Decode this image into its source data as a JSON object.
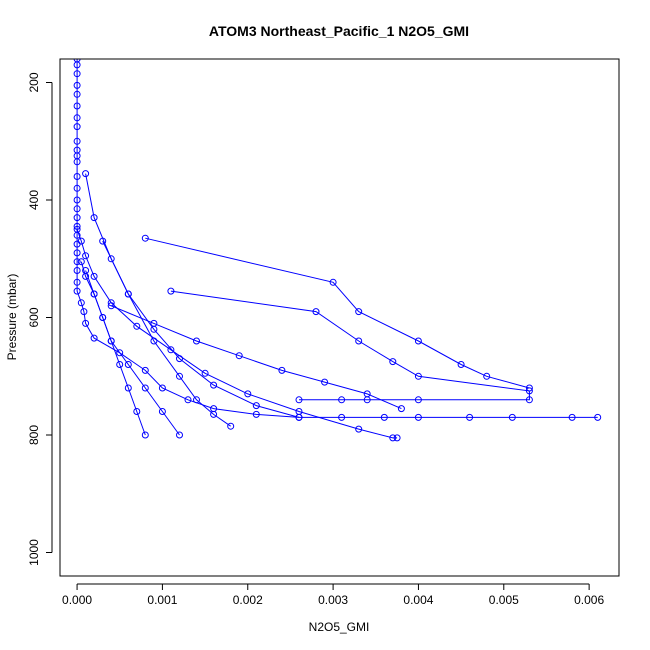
{
  "chart_data": {
    "type": "line",
    "title": "ATOM3 Northeast_Pacific_1 N2O5_GMI",
    "xlabel": "N2O5_GMI",
    "ylabel": "Pressure (mbar)",
    "xlim": [
      -0.0002,
      0.00635
    ],
    "ylim": [
      1040,
      160
    ],
    "y_reversed": true,
    "x_ticks": [
      "0.000",
      "0.001",
      "0.002",
      "0.003",
      "0.004",
      "0.005",
      "0.006"
    ],
    "y_ticks": [
      "200",
      "400",
      "600",
      "800",
      "1000"
    ],
    "grid": false,
    "series_color": "#0000ff",
    "marker": "open-circle",
    "series": [
      {
        "x": [
          0,
          0,
          0,
          0,
          0,
          0,
          0,
          0,
          0,
          0,
          0,
          0,
          0,
          0,
          0,
          0,
          0,
          0,
          0,
          0,
          0,
          0,
          0,
          0,
          0,
          5e-05,
          8e-05,
          0.0001,
          0.0002,
          0.0005,
          0.0008,
          0.001,
          0.0013,
          0.0016,
          0.0021,
          0.0026,
          0.0031,
          0.0036,
          0.004,
          0.0046,
          0.0051,
          0.0058,
          0.0061
        ],
        "y": [
          160,
          170,
          185,
          205,
          220,
          240,
          260,
          275,
          300,
          315,
          325,
          335,
          360,
          380,
          400,
          415,
          430,
          445,
          460,
          475,
          490,
          505,
          520,
          540,
          555,
          575,
          590,
          610,
          635,
          660,
          690,
          720,
          740,
          755,
          765,
          770,
          770,
          770,
          770,
          770,
          770,
          770,
          770
        ]
      },
      {
        "x": [
          0,
          5e-05,
          0.0001,
          0.0002,
          0.0004,
          0.0007,
          0.0011,
          0.0015,
          0.002,
          0.0026,
          0.0033,
          0.0037,
          0.00375
        ],
        "y": [
          450,
          470,
          495,
          530,
          575,
          615,
          655,
          695,
          730,
          760,
          790,
          805,
          805
        ]
      },
      {
        "x": [
          0.0001,
          0.0002,
          0.0004,
          0.0006,
          0.0009,
          0.0012,
          0.0016,
          0.0021,
          0.0026
        ],
        "y": [
          355,
          430,
          500,
          560,
          620,
          670,
          715,
          750,
          770
        ]
      },
      {
        "x": [
          0.0003,
          0.0006,
          0.0009,
          0.0012,
          0.0014,
          0.0016,
          0.0018
        ],
        "y": [
          470,
          560,
          640,
          700,
          740,
          765,
          785
        ]
      },
      {
        "x": [
          5e-05,
          0.0001,
          0.0002,
          0.0003,
          0.0004,
          0.0006,
          0.0008,
          0.001,
          0.0012
        ],
        "y": [
          505,
          530,
          560,
          600,
          640,
          680,
          720,
          760,
          800
        ]
      },
      {
        "x": [
          0.0001,
          0.0002,
          0.0003,
          0.0004,
          0.0005,
          0.0006,
          0.0007,
          0.0008
        ],
        "y": [
          520,
          560,
          600,
          640,
          680,
          720,
          760,
          800
        ]
      },
      {
        "x": [
          0.0008,
          0.003,
          0.0033,
          0.004,
          0.0045,
          0.0048,
          0.0053
        ],
        "y": [
          465,
          540,
          590,
          640,
          680,
          700,
          720
        ]
      },
      {
        "x": [
          0.0011,
          0.0028,
          0.0033,
          0.0037,
          0.004,
          0.0053,
          0.0053,
          0.004,
          0.0034,
          0.0031,
          0.0026
        ],
        "y": [
          555,
          590,
          640,
          675,
          700,
          725,
          740,
          740,
          740,
          740,
          740
        ]
      },
      {
        "x": [
          0.0004,
          0.0009,
          0.0014,
          0.0019,
          0.0024,
          0.0029,
          0.0034,
          0.0038
        ],
        "y": [
          580,
          610,
          640,
          665,
          690,
          710,
          730,
          755
        ]
      }
    ]
  }
}
